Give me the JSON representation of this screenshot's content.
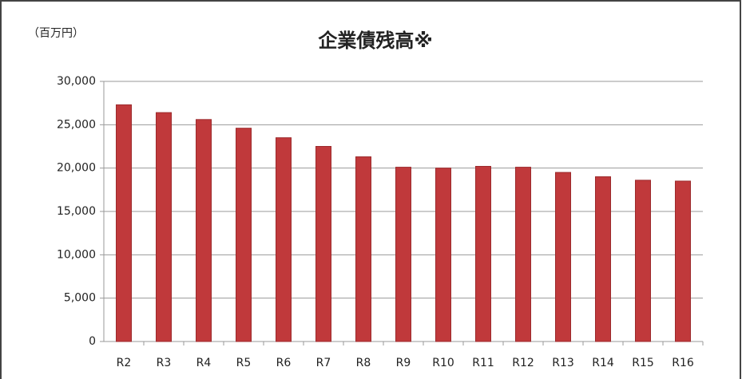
{
  "chart_data": {
    "type": "bar",
    "title": "企業債残高※",
    "y_label": "（百万円）",
    "categories": [
      "R2",
      "R3",
      "R4",
      "R5",
      "R6",
      "R7",
      "R8",
      "R9",
      "R10",
      "R11",
      "R12",
      "R13",
      "R14",
      "R15",
      "R16"
    ],
    "values": [
      27300,
      26400,
      25600,
      24600,
      23500,
      22500,
      21300,
      20100,
      20000,
      20200,
      20100,
      19500,
      19000,
      18600,
      18500
    ],
    "color": "#c0393b",
    "ylim": [
      0,
      30000
    ],
    "yticks": [
      0,
      {
        "value": 5000,
        "label": "5,000"
      },
      {
        "value": 10000,
        "label": "10,000"
      },
      {
        "value": 15000,
        "label": "15,000"
      },
      {
        "value": 20000,
        "label": "20,000"
      },
      {
        "value": 25000,
        "label": "25,000"
      },
      {
        "value": 30000,
        "label": "30,000"
      }
    ],
    "grid": true
  }
}
